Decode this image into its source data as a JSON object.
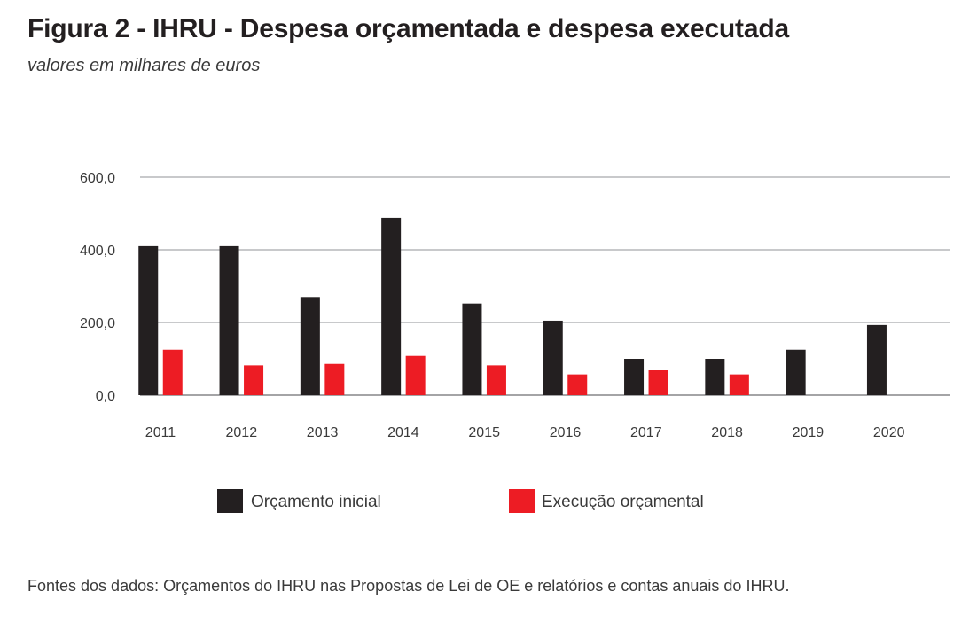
{
  "header": {
    "title": "Figura 2 - IHRU - Despesa orçamentada e despesa executada",
    "subtitle": "valores em milhares de euros"
  },
  "footer": {
    "source": "Fontes dos dados: Orçamentos do IHRU nas Propostas de Lei de OE e relatórios e contas anuais do IHRU."
  },
  "chart_data": {
    "type": "bar",
    "title": "Figura 2 - IHRU - Despesa orçamentada e despesa executada",
    "subtitle": "valores em milhares de euros",
    "categories": [
      "2011",
      "2012",
      "2013",
      "2014",
      "2015",
      "2016",
      "2017",
      "2018",
      "2019",
      "2020"
    ],
    "series": [
      {
        "name": "Orçamento inicial",
        "color": "#231f20",
        "values": [
          410,
          410,
          270,
          488,
          252,
          205,
          100,
          100,
          125,
          193
        ]
      },
      {
        "name": "Execução orçamental",
        "color": "#ed1c24",
        "values": [
          125,
          82,
          86,
          108,
          82,
          57,
          70,
          57,
          null,
          null
        ]
      }
    ],
    "ylim": [
      0,
      600
    ],
    "yticks": [
      0,
      200,
      400,
      600
    ],
    "ytick_labels": [
      "0,0",
      "200,0",
      "400,0",
      "600,0"
    ],
    "grid": true,
    "legend": "bottom",
    "xlabel": "",
    "ylabel": ""
  }
}
